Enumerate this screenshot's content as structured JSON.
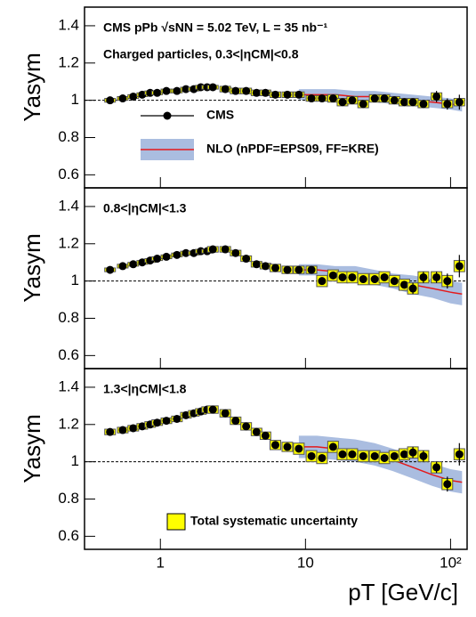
{
  "chart_data": [
    {
      "type": "scatter",
      "annotations": [
        "CMS pPb √sNN = 5.02 TeV, L = 35 nb⁻¹",
        "Charged particles, 0.3<|ηCM|<0.8"
      ],
      "ylabel": "Yasym",
      "xscale": "log",
      "xlim": [
        0.3,
        130
      ],
      "ylim": [
        0.53,
        1.5
      ],
      "xticks": [
        1,
        10,
        {
          "value": 100,
          "label": "10²"
        }
      ],
      "yticks": [
        0.6,
        0.8,
        1,
        1.2,
        1.4
      ],
      "reference": 1,
      "legend": "center-left",
      "x": [
        0.45,
        0.55,
        0.65,
        0.75,
        0.85,
        0.95,
        1.1,
        1.3,
        1.5,
        1.7,
        1.9,
        2.1,
        2.3,
        2.8,
        3.3,
        3.9,
        4.6,
        5.3,
        6.2,
        7.5,
        9,
        11,
        13,
        15.5,
        18,
        21,
        25,
        30,
        35,
        41,
        48,
        55,
        65,
        80,
        95,
        115
      ],
      "series": [
        {
          "name": "CMS",
          "color": "#000000",
          "syst_color": "#ffff00",
          "values": [
            1.0,
            1.01,
            1.02,
            1.03,
            1.04,
            1.04,
            1.05,
            1.05,
            1.06,
            1.06,
            1.07,
            1.07,
            1.07,
            1.06,
            1.05,
            1.05,
            1.04,
            1.04,
            1.03,
            1.03,
            1.03,
            1.01,
            1.01,
            1.01,
            0.99,
            1.0,
            0.98,
            1.01,
            1.01,
            1.0,
            0.99,
            0.99,
            0.98,
            1.02,
            0.98,
            0.99
          ],
          "errors": [
            0.005,
            0.005,
            0.005,
            0.005,
            0.005,
            0.005,
            0.005,
            0.005,
            0.005,
            0.005,
            0.005,
            0.005,
            0.005,
            0.005,
            0.005,
            0.005,
            0.005,
            0.005,
            0.005,
            0.005,
            0.01,
            0.01,
            0.01,
            0.01,
            0.01,
            0.01,
            0.015,
            0.015,
            0.015,
            0.015,
            0.015,
            0.02,
            0.02,
            0.03,
            0.03,
            0.04
          ],
          "syst": [
            0.01,
            0.01,
            0.01,
            0.01,
            0.01,
            0.01,
            0.01,
            0.01,
            0.01,
            0.01,
            0.01,
            0.01,
            0.01,
            0.015,
            0.015,
            0.015,
            0.015,
            0.015,
            0.015,
            0.015,
            0.015,
            0.015,
            0.015,
            0.02,
            0.02,
            0.02,
            0.02,
            0.02,
            0.02,
            0.02,
            0.02,
            0.02,
            0.02,
            0.02,
            0.02,
            0.02
          ]
        },
        {
          "name": "NLO (nPDF=EPS09, FF=KRE)",
          "color": "#e41a1c",
          "band_color": "#aabde0",
          "x": [
            9,
            12,
            16,
            22,
            30,
            40,
            55,
            75,
            100,
            120
          ],
          "values": [
            1.03,
            1.03,
            1.03,
            1.02,
            1.02,
            1.01,
            1.0,
            0.99,
            0.98,
            0.97
          ],
          "low": [
            1.0,
            1.0,
            1.0,
            0.99,
            0.99,
            0.98,
            0.97,
            0.96,
            0.95,
            0.94
          ],
          "high": [
            1.06,
            1.06,
            1.06,
            1.05,
            1.05,
            1.04,
            1.03,
            1.02,
            1.01,
            1.0
          ]
        }
      ]
    },
    {
      "type": "scatter",
      "annotations": [
        "0.8<|ηCM|<1.3"
      ],
      "ylabel": "Yasym",
      "xscale": "log",
      "xlim": [
        0.3,
        130
      ],
      "ylim": [
        0.53,
        1.5
      ],
      "xticks": [
        1,
        10,
        {
          "value": 100,
          "label": "10²"
        }
      ],
      "yticks": [
        0.6,
        0.8,
        1,
        1.2,
        1.4
      ],
      "reference": 1,
      "x": [
        0.45,
        0.55,
        0.65,
        0.75,
        0.85,
        0.95,
        1.1,
        1.3,
        1.5,
        1.7,
        1.9,
        2.1,
        2.3,
        2.8,
        3.3,
        3.9,
        4.6,
        5.3,
        6.2,
        7.5,
        9,
        11,
        13,
        15.5,
        18,
        21,
        25,
        30,
        35,
        41,
        48,
        55,
        65,
        80,
        95,
        115
      ],
      "series": [
        {
          "color": "#000000",
          "syst_color": "#ffff00",
          "values": [
            1.06,
            1.08,
            1.09,
            1.1,
            1.11,
            1.12,
            1.13,
            1.14,
            1.15,
            1.15,
            1.16,
            1.16,
            1.17,
            1.17,
            1.15,
            1.12,
            1.09,
            1.08,
            1.07,
            1.06,
            1.06,
            1.06,
            1.0,
            1.03,
            1.02,
            1.02,
            1.01,
            1.01,
            1.02,
            1.0,
            0.98,
            0.96,
            1.02,
            1.02,
            1.0,
            1.08
          ],
          "errors": [
            0.005,
            0.005,
            0.005,
            0.005,
            0.005,
            0.005,
            0.005,
            0.005,
            0.005,
            0.005,
            0.005,
            0.005,
            0.005,
            0.005,
            0.005,
            0.005,
            0.005,
            0.005,
            0.01,
            0.01,
            0.01,
            0.01,
            0.015,
            0.015,
            0.015,
            0.015,
            0.02,
            0.02,
            0.02,
            0.02,
            0.02,
            0.03,
            0.03,
            0.03,
            0.04,
            0.06
          ],
          "syst": [
            0.01,
            0.01,
            0.01,
            0.01,
            0.01,
            0.01,
            0.01,
            0.01,
            0.01,
            0.01,
            0.01,
            0.01,
            0.015,
            0.015,
            0.015,
            0.015,
            0.015,
            0.015,
            0.02,
            0.02,
            0.02,
            0.02,
            0.03,
            0.03,
            0.03,
            0.03,
            0.03,
            0.03,
            0.03,
            0.03,
            0.03,
            0.03,
            0.03,
            0.03,
            0.03,
            0.03
          ]
        },
        {
          "color": "#e41a1c",
          "band_color": "#aabde0",
          "x": [
            9,
            12,
            16,
            22,
            30,
            40,
            55,
            75,
            100,
            120
          ],
          "values": [
            1.06,
            1.06,
            1.05,
            1.04,
            1.02,
            1.0,
            0.98,
            0.96,
            0.94,
            0.93
          ],
          "low": [
            1.03,
            1.03,
            1.02,
            1.0,
            0.98,
            0.96,
            0.93,
            0.91,
            0.88,
            0.87
          ],
          "high": [
            1.09,
            1.09,
            1.08,
            1.08,
            1.06,
            1.04,
            1.03,
            1.01,
            1.0,
            0.99
          ]
        }
      ]
    },
    {
      "type": "scatter",
      "annotations": [
        "1.3<|ηCM|<1.8"
      ],
      "ylabel": "Yasym",
      "xlabel": "pT [GeV/c]",
      "xscale": "log",
      "xlim": [
        0.3,
        130
      ],
      "ylim": [
        0.53,
        1.5
      ],
      "xticks": [
        1,
        10,
        {
          "value": 100,
          "label": "10²"
        }
      ],
      "yticks": [
        0.6,
        0.8,
        1,
        1.2,
        1.4
      ],
      "reference": 1,
      "syst_label": "Total systematic uncertainty",
      "x": [
        0.45,
        0.55,
        0.65,
        0.75,
        0.85,
        0.95,
        1.1,
        1.3,
        1.5,
        1.7,
        1.9,
        2.1,
        2.3,
        2.8,
        3.3,
        3.9,
        4.6,
        5.3,
        6.2,
        7.5,
        9,
        11,
        13,
        15.5,
        18,
        21,
        25,
        30,
        35,
        41,
        48,
        55,
        65,
        80,
        95,
        115
      ],
      "series": [
        {
          "color": "#000000",
          "syst_color": "#ffff00",
          "values": [
            1.16,
            1.17,
            1.18,
            1.19,
            1.2,
            1.21,
            1.22,
            1.23,
            1.25,
            1.26,
            1.27,
            1.28,
            1.28,
            1.26,
            1.22,
            1.19,
            1.16,
            1.14,
            1.09,
            1.08,
            1.07,
            1.03,
            1.02,
            1.08,
            1.04,
            1.04,
            1.03,
            1.03,
            1.02,
            1.03,
            1.04,
            1.05,
            1.03,
            0.97,
            0.88,
            1.04
          ],
          "errors": [
            0.005,
            0.005,
            0.005,
            0.005,
            0.005,
            0.005,
            0.005,
            0.005,
            0.005,
            0.005,
            0.005,
            0.005,
            0.005,
            0.005,
            0.005,
            0.005,
            0.005,
            0.01,
            0.01,
            0.01,
            0.01,
            0.01,
            0.015,
            0.015,
            0.015,
            0.015,
            0.02,
            0.02,
            0.02,
            0.02,
            0.02,
            0.03,
            0.03,
            0.03,
            0.04,
            0.06
          ],
          "syst": [
            0.015,
            0.015,
            0.015,
            0.015,
            0.015,
            0.015,
            0.015,
            0.015,
            0.015,
            0.015,
            0.015,
            0.015,
            0.02,
            0.02,
            0.02,
            0.02,
            0.02,
            0.02,
            0.025,
            0.025,
            0.03,
            0.03,
            0.03,
            0.03,
            0.03,
            0.03,
            0.03,
            0.03,
            0.03,
            0.03,
            0.03,
            0.03,
            0.03,
            0.03,
            0.03,
            0.03
          ]
        },
        {
          "color": "#e41a1c",
          "band_color": "#aabde0",
          "x": [
            9,
            12,
            16,
            22,
            30,
            40,
            55,
            75,
            100,
            120
          ],
          "values": [
            1.08,
            1.08,
            1.07,
            1.06,
            1.04,
            1.01,
            0.97,
            0.93,
            0.9,
            0.89
          ],
          "low": [
            1.02,
            1.02,
            1.01,
            1.0,
            0.98,
            0.95,
            0.91,
            0.87,
            0.84,
            0.83
          ],
          "high": [
            1.14,
            1.14,
            1.13,
            1.12,
            1.1,
            1.07,
            1.03,
            0.99,
            0.96,
            0.95
          ]
        }
      ]
    }
  ]
}
